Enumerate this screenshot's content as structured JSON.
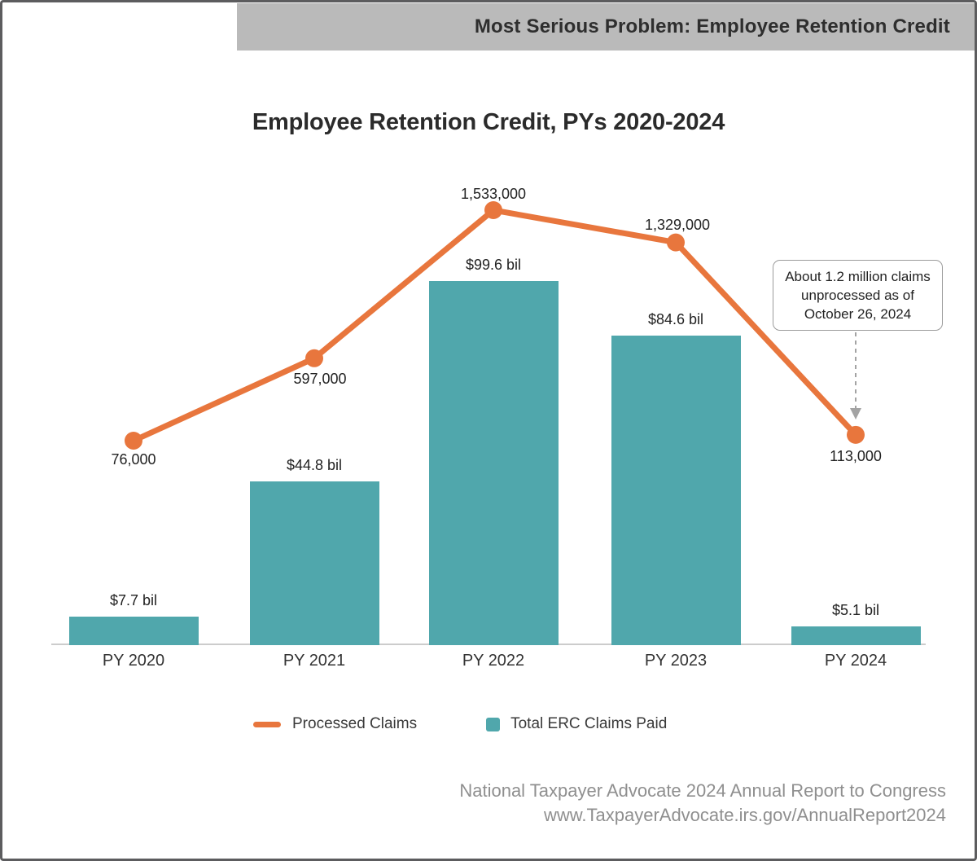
{
  "banner": {
    "title": "Most Serious Problem: Employee Retention Credit"
  },
  "chart_data": {
    "type": "combo",
    "title": "Employee Retention Credit, PYs 2020-2024",
    "categories": [
      "PY 2020",
      "PY 2021",
      "PY 2022",
      "PY 2023",
      "PY 2024"
    ],
    "series": [
      {
        "name": "Total ERC Claims Paid",
        "type": "bar",
        "unit": "USD billions",
        "values": [
          7.7,
          44.8,
          99.6,
          84.6,
          5.1
        ],
        "value_labels": [
          "$7.7 bil",
          "$44.8 bil",
          "$99.6 bil",
          "$84.6 bil",
          "$5.1 bil"
        ]
      },
      {
        "name": "Processed Claims",
        "type": "line",
        "unit": "claims",
        "values": [
          76000,
          597000,
          1533000,
          1329000,
          113000
        ],
        "value_labels": [
          "76,000",
          "597,000",
          "1,533,000",
          "1,329,000",
          "113,000"
        ]
      }
    ],
    "grid": false,
    "legend_position": "bottom",
    "annotation": {
      "text": "About 1.2 million claims unprocessed as of October 26, 2024",
      "target": "PY 2024 line point"
    }
  },
  "annotation": {
    "line1": "About 1.2 million claims",
    "line2": "unprocessed as of",
    "line3": "October 26, 2024"
  },
  "legend": {
    "line": "Processed Claims",
    "bar": "Total ERC Claims Paid"
  },
  "footer": {
    "line1": "National Taxpayer Advocate 2024 Annual Report to Congress",
    "line2": "www.TaxpayerAdvocate.irs.gov/AnnualReport2024"
  },
  "colors": {
    "bar": "#50a7ac",
    "line": "#e8763d",
    "banner_bg": "#bababa",
    "banner_text": "#2e2e2e",
    "frame_border": "#5c5c5e",
    "axis": "#cccccc",
    "arrow": "#a3a3a3",
    "annotation_border": "#9b9b9b",
    "label_text": "#222222",
    "footer_text": "#8f8f8f"
  }
}
